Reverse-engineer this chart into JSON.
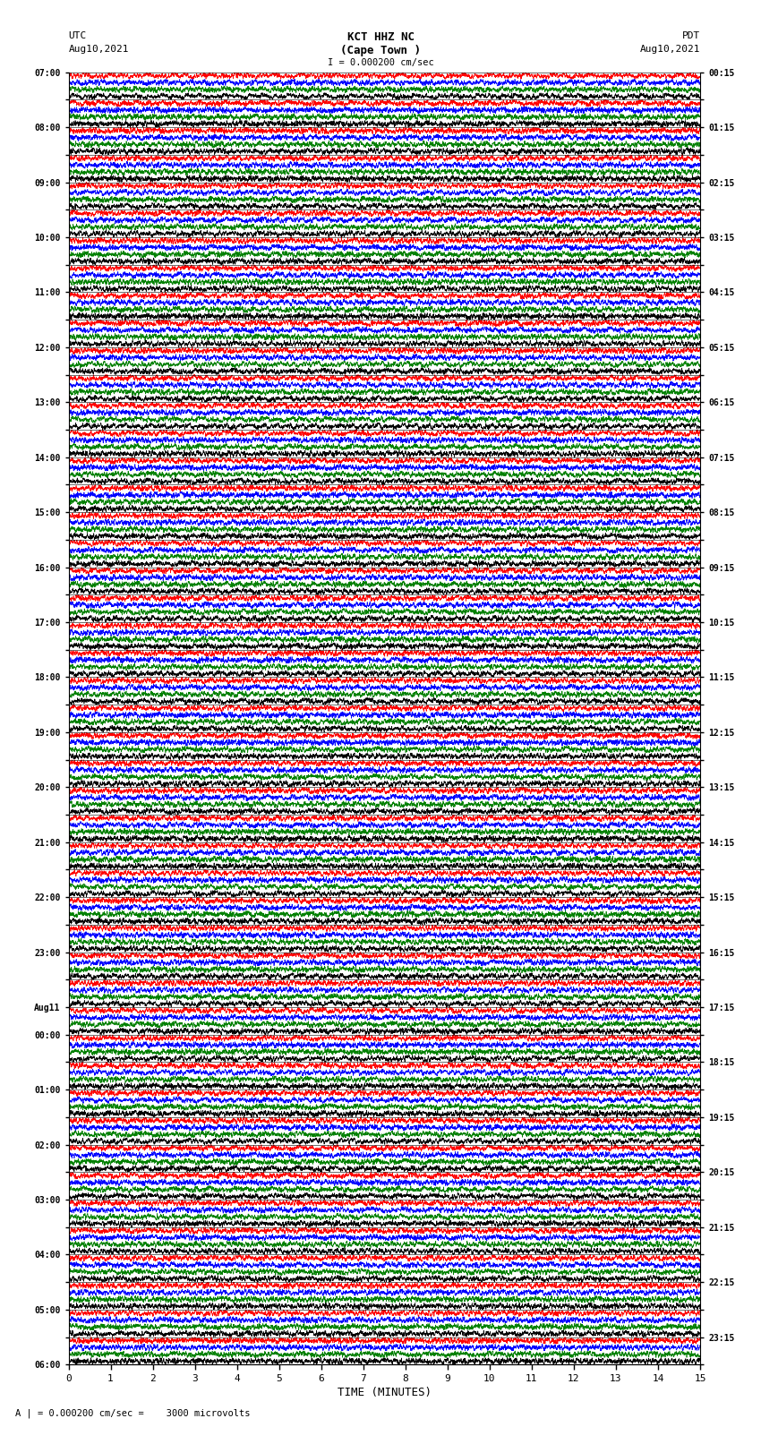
{
  "title_line1": "KCT HHZ NC",
  "title_line2": "(Cape Town )",
  "scale_label": "I = 0.000200 cm/sec",
  "bottom_label": "A | = 0.000200 cm/sec =    3000 microvolts",
  "xlabel": "TIME (MINUTES)",
  "utc_label": "UTC",
  "utc_date": "Aug10,2021",
  "pdt_label": "PDT",
  "pdt_date": "Aug10,2021",
  "left_times": [
    "07:00",
    "",
    "08:00",
    "",
    "09:00",
    "",
    "10:00",
    "",
    "11:00",
    "",
    "12:00",
    "",
    "13:00",
    "",
    "14:00",
    "",
    "15:00",
    "",
    "16:00",
    "",
    "17:00",
    "",
    "18:00",
    "",
    "19:00",
    "",
    "20:00",
    "",
    "21:00",
    "",
    "22:00",
    "",
    "23:00",
    "",
    "Aug11",
    "00:00",
    "",
    "01:00",
    "",
    "02:00",
    "",
    "03:00",
    "",
    "04:00",
    "",
    "05:00",
    "",
    "06:00"
  ],
  "right_times": [
    "00:15",
    "",
    "01:15",
    "",
    "02:15",
    "",
    "03:15",
    "",
    "04:15",
    "",
    "05:15",
    "",
    "06:15",
    "",
    "07:15",
    "",
    "08:15",
    "",
    "09:15",
    "",
    "10:15",
    "",
    "11:15",
    "",
    "12:15",
    "",
    "13:15",
    "",
    "14:15",
    "",
    "15:15",
    "",
    "16:15",
    "",
    "17:15",
    "",
    "18:15",
    "",
    "19:15",
    "",
    "20:15",
    "",
    "21:15",
    "",
    "22:15",
    "",
    "23:15"
  ],
  "n_traces": 47,
  "xmin": 0,
  "xmax": 15,
  "sub_colors": [
    "red",
    "blue",
    "green",
    "black"
  ],
  "bg_color": "white",
  "fig_width": 8.5,
  "fig_height": 16.13,
  "dpi": 100
}
